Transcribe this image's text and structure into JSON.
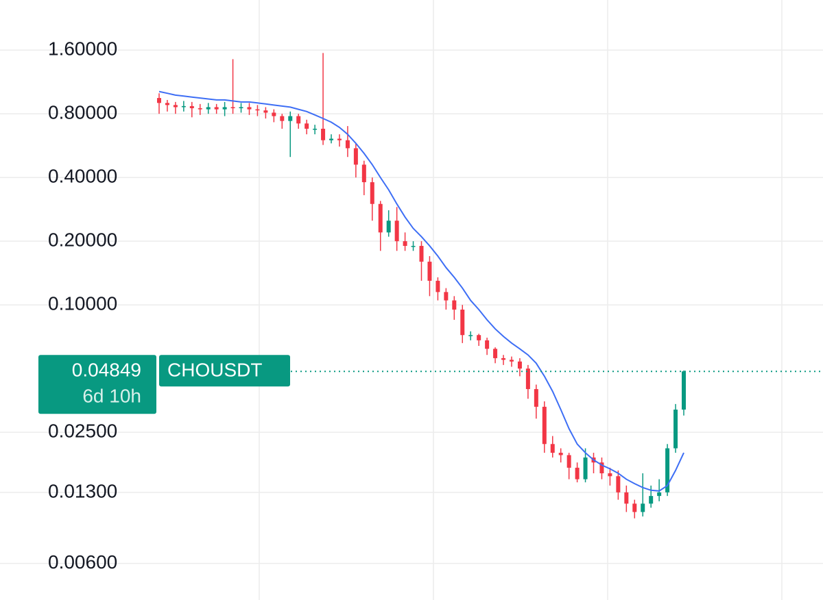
{
  "chart_data": {
    "type": "candlestick",
    "symbol": "CHOUSDT",
    "countdown": "6d 10h",
    "last_price": 0.04849,
    "log_scale": true,
    "grid": true,
    "up_color": "#089981",
    "down_color": "#f23645",
    "ylim": [
      0.00403,
      2.76
    ],
    "yticks": [
      {
        "value": 1.6,
        "label": "1.60000"
      },
      {
        "value": 0.8,
        "label": "0.80000"
      },
      {
        "value": 0.4,
        "label": "0.40000"
      },
      {
        "value": 0.2,
        "label": "0.20000"
      },
      {
        "value": 0.1,
        "label": "0.10000"
      },
      {
        "value": 0.025,
        "label": "0.02500"
      },
      {
        "value": 0.013,
        "label": "0.01300"
      },
      {
        "value": 0.006,
        "label": "0.00600"
      }
    ],
    "open": [
      0.95,
      0.9,
      0.88,
      0.86,
      0.87,
      0.85,
      0.84,
      0.86,
      0.84,
      0.86,
      0.85,
      0.86,
      0.84,
      0.83,
      0.81,
      0.78,
      0.74,
      0.78,
      0.72,
      0.68,
      0.68,
      0.6,
      0.61,
      0.6,
      0.55,
      0.46,
      0.38,
      0.3,
      0.22,
      0.25,
      0.2,
      0.19,
      0.19,
      0.16,
      0.13,
      0.115,
      0.105,
      0.095,
      0.072,
      0.072,
      0.068,
      0.062,
      0.056,
      0.055,
      0.054,
      0.05,
      0.04,
      0.033,
      0.022,
      0.02,
      0.0195,
      0.017,
      0.015,
      0.019,
      0.018,
      0.016,
      0.0155,
      0.013,
      0.0115,
      0.0105,
      0.0115,
      0.0125,
      0.013,
      0.021,
      0.032
    ],
    "high": [
      1.0,
      0.93,
      0.91,
      0.92,
      0.91,
      0.89,
      0.9,
      0.89,
      0.91,
      1.45,
      0.9,
      0.9,
      0.88,
      0.86,
      0.84,
      0.8,
      0.82,
      0.8,
      0.75,
      0.71,
      1.55,
      0.64,
      0.64,
      0.7,
      0.58,
      0.48,
      0.4,
      0.31,
      0.28,
      0.29,
      0.22,
      0.2,
      0.2,
      0.17,
      0.135,
      0.12,
      0.11,
      0.1,
      0.075,
      0.073,
      0.07,
      0.063,
      0.058,
      0.057,
      0.056,
      0.052,
      0.042,
      0.035,
      0.024,
      0.021,
      0.02,
      0.018,
      0.021,
      0.02,
      0.019,
      0.017,
      0.0165,
      0.014,
      0.012,
      0.016,
      0.014,
      0.015,
      0.022,
      0.034,
      0.049
    ],
    "low": [
      0.8,
      0.82,
      0.8,
      0.82,
      0.77,
      0.79,
      0.8,
      0.8,
      0.78,
      0.8,
      0.81,
      0.79,
      0.78,
      0.76,
      0.73,
      0.68,
      0.5,
      0.68,
      0.64,
      0.64,
      0.57,
      0.58,
      0.56,
      0.5,
      0.4,
      0.33,
      0.25,
      0.18,
      0.21,
      0.18,
      0.18,
      0.18,
      0.13,
      0.11,
      0.105,
      0.095,
      0.085,
      0.066,
      0.068,
      0.064,
      0.058,
      0.053,
      0.052,
      0.051,
      0.046,
      0.036,
      0.029,
      0.02,
      0.019,
      0.018,
      0.015,
      0.0145,
      0.0145,
      0.016,
      0.015,
      0.014,
      0.012,
      0.0105,
      0.0098,
      0.01,
      0.011,
      0.0118,
      0.0125,
      0.02,
      0.03
    ],
    "close": [
      0.9,
      0.88,
      0.86,
      0.87,
      0.85,
      0.84,
      0.86,
      0.84,
      0.86,
      0.85,
      0.86,
      0.84,
      0.83,
      0.81,
      0.78,
      0.74,
      0.78,
      0.72,
      0.68,
      0.68,
      0.6,
      0.61,
      0.6,
      0.55,
      0.46,
      0.38,
      0.3,
      0.22,
      0.25,
      0.2,
      0.19,
      0.19,
      0.16,
      0.13,
      0.115,
      0.105,
      0.095,
      0.072,
      0.072,
      0.068,
      0.062,
      0.056,
      0.055,
      0.054,
      0.05,
      0.04,
      0.033,
      0.022,
      0.02,
      0.0195,
      0.017,
      0.015,
      0.019,
      0.018,
      0.016,
      0.0155,
      0.013,
      0.0115,
      0.0105,
      0.0115,
      0.0125,
      0.013,
      0.021,
      0.032,
      0.0485
    ],
    "ma": {
      "color": "#3d6ef5",
      "values": [
        1.02,
        1.0,
        0.98,
        0.97,
        0.96,
        0.95,
        0.94,
        0.93,
        0.93,
        0.92,
        0.91,
        0.91,
        0.9,
        0.89,
        0.88,
        0.87,
        0.86,
        0.84,
        0.82,
        0.79,
        0.76,
        0.73,
        0.69,
        0.64,
        0.58,
        0.52,
        0.46,
        0.4,
        0.35,
        0.3,
        0.26,
        0.23,
        0.21,
        0.19,
        0.17,
        0.15,
        0.135,
        0.12,
        0.105,
        0.095,
        0.085,
        0.077,
        0.071,
        0.066,
        0.062,
        0.058,
        0.053,
        0.046,
        0.039,
        0.032,
        0.026,
        0.022,
        0.02,
        0.0185,
        0.0175,
        0.0168,
        0.016,
        0.015,
        0.0143,
        0.0137,
        0.0133,
        0.0132,
        0.014,
        0.0165,
        0.02
      ]
    }
  }
}
